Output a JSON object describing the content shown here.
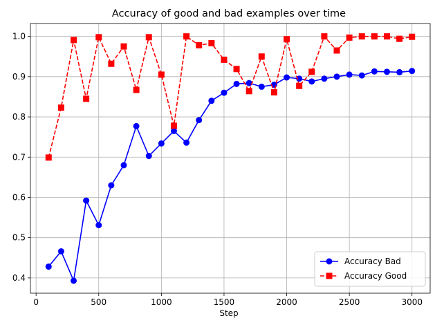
{
  "chart_data": {
    "type": "line",
    "title": "Accuracy of good and bad examples over time",
    "xlabel": "Step",
    "ylabel": "",
    "xlim": [
      -45,
      3145
    ],
    "ylim": [
      0.362,
      1.032
    ],
    "xticks": [
      0,
      500,
      1000,
      1500,
      2000,
      2500,
      3000
    ],
    "xtick_labels": [
      "0",
      "500",
      "1000",
      "1500",
      "2000",
      "2500",
      "3000"
    ],
    "yticks": [
      0.4,
      0.5,
      0.6,
      0.7,
      0.8,
      0.9,
      1.0
    ],
    "ytick_labels": [
      "0.4",
      "0.5",
      "0.6",
      "0.7",
      "0.8",
      "0.9",
      "1.0"
    ],
    "grid": true,
    "legend_position": "lower-right",
    "x": [
      100,
      200,
      300,
      400,
      500,
      600,
      700,
      800,
      900,
      1000,
      1100,
      1200,
      1300,
      1400,
      1500,
      1600,
      1700,
      1800,
      1900,
      2000,
      2100,
      2200,
      2300,
      2400,
      2500,
      2600,
      2700,
      2800,
      2900,
      3000
    ],
    "series": [
      {
        "name": "Accuracy Bad",
        "color": "#0000ff",
        "marker": "circle",
        "linestyle": "solid",
        "values": [
          0.428,
          0.466,
          0.393,
          0.592,
          0.531,
          0.63,
          0.68,
          0.777,
          0.703,
          0.734,
          0.765,
          0.736,
          0.792,
          0.84,
          0.86,
          0.882,
          0.884,
          0.875,
          0.88,
          0.898,
          0.895,
          0.888,
          0.895,
          0.9,
          0.905,
          0.903,
          0.913,
          0.912,
          0.911,
          0.914
        ]
      },
      {
        "name": "Accuracy Good",
        "color": "#ff0000",
        "marker": "square",
        "linestyle": "dashed",
        "values": [
          0.699,
          0.823,
          0.991,
          0.845,
          0.998,
          0.932,
          0.975,
          0.867,
          0.998,
          0.905,
          0.778,
          1.0,
          0.978,
          0.983,
          0.942,
          0.919,
          0.864,
          0.95,
          0.861,
          0.993,
          0.877,
          0.912,
          1.0,
          0.965,
          0.997,
          1.0,
          1.0,
          1.0,
          0.994,
          0.999
        ]
      }
    ]
  }
}
